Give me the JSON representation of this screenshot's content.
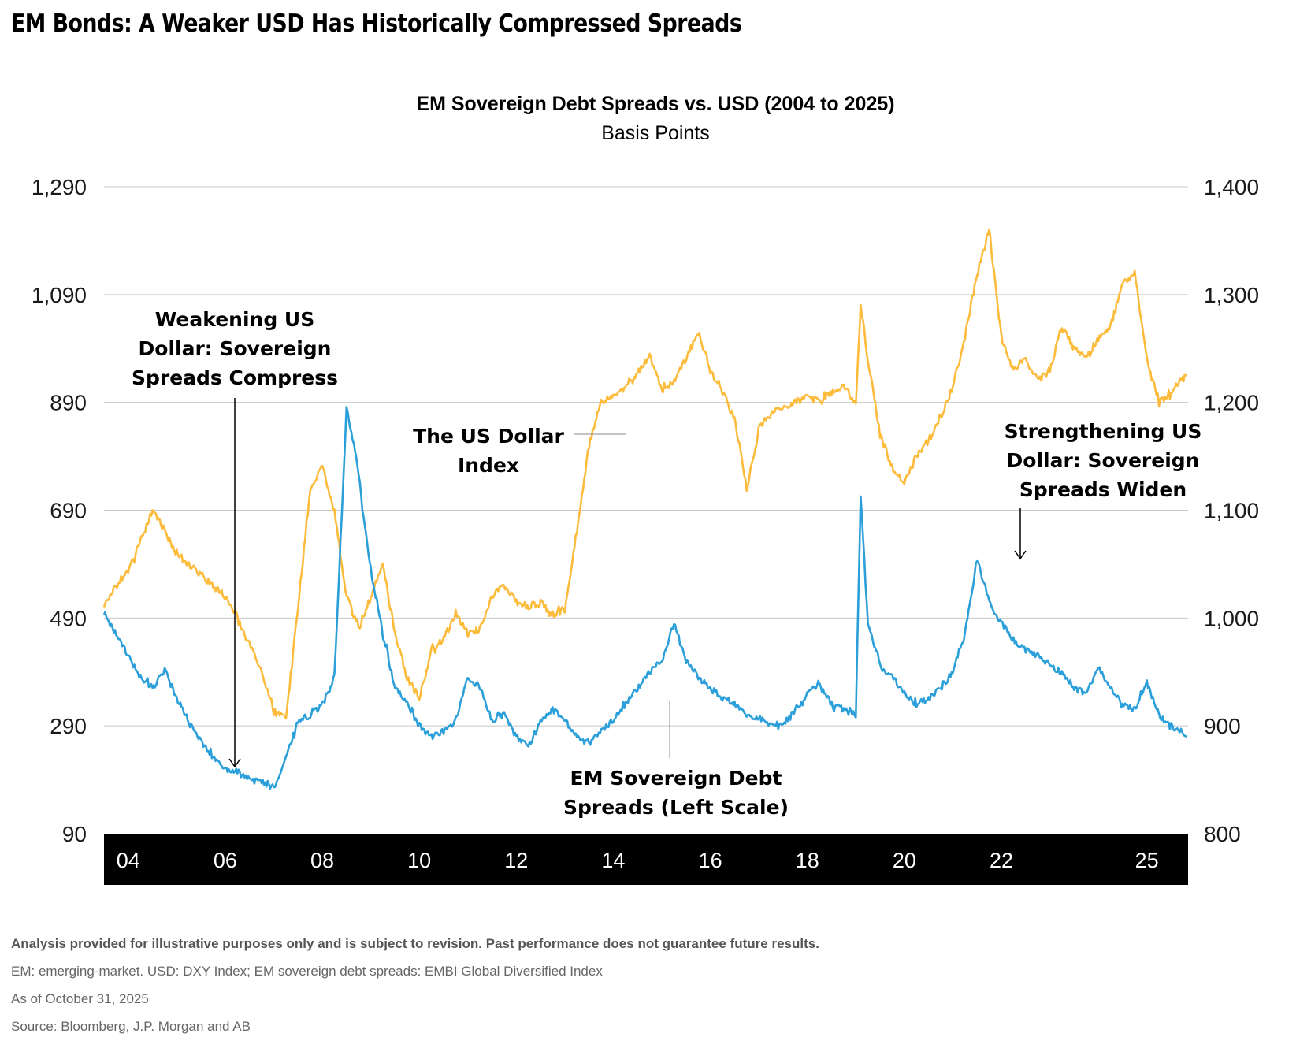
{
  "header": {
    "title": "EM Bonds: A Weaker USD Has Historically Compressed Spreads"
  },
  "chart_data": {
    "type": "line",
    "title": "EM Sovereign Debt Spreads vs. USD (2004 to 2025)",
    "subtitle": "Basis Points",
    "xlabel": "",
    "x_tick_labels": [
      "04",
      "06",
      "08",
      "10",
      "12",
      "14",
      "16",
      "18",
      "20",
      "22",
      "25"
    ],
    "x_tick_years": [
      2004,
      2006,
      2008,
      2010,
      2012,
      2014,
      2016,
      2018,
      2020,
      2022,
      2025
    ],
    "xlim": [
      2003.5,
      2025.85
    ],
    "y_left": {
      "label": "EM Sovereign Debt Spreads (bp)",
      "ylim": [
        90,
        1290
      ],
      "ticks": [
        90,
        290,
        490,
        690,
        890,
        1090,
        1290
      ],
      "tick_labels": [
        "90",
        "290",
        "490",
        "690",
        "890",
        "1,090",
        "1,290"
      ]
    },
    "y_right": {
      "label": "US Dollar Index",
      "ylim": [
        800,
        1400
      ],
      "ticks": [
        800,
        900,
        1000,
        1100,
        1200,
        1300,
        1400
      ],
      "tick_labels": [
        "800",
        "900",
        "1,000",
        "1,100",
        "1,200",
        "1,300",
        "1,400"
      ]
    },
    "grid": true,
    "legend": "none (inline annotations)",
    "series": [
      {
        "name": "The US Dollar Index",
        "axis": "right",
        "color": "#FDBB3B",
        "x": [
          2003.5,
          2003.75,
          2004.0,
          2004.25,
          2004.5,
          2004.75,
          2005.0,
          2005.25,
          2005.5,
          2005.75,
          2006.0,
          2006.25,
          2006.5,
          2006.75,
          2007.0,
          2007.25,
          2007.5,
          2007.75,
          2008.0,
          2008.25,
          2008.5,
          2008.75,
          2009.0,
          2009.25,
          2009.5,
          2009.75,
          2010.0,
          2010.25,
          2010.5,
          2010.75,
          2011.0,
          2011.25,
          2011.5,
          2011.75,
          2012.0,
          2012.25,
          2012.5,
          2012.75,
          2013.0,
          2013.25,
          2013.5,
          2013.75,
          2014.0,
          2014.25,
          2014.5,
          2014.75,
          2015.0,
          2015.25,
          2015.5,
          2015.75,
          2016.0,
          2016.25,
          2016.5,
          2016.75,
          2017.0,
          2017.25,
          2017.5,
          2017.75,
          2018.0,
          2018.25,
          2018.5,
          2018.75,
          2019.0,
          2019.1,
          2019.25,
          2019.5,
          2019.75,
          2020.0,
          2020.25,
          2020.5,
          2020.75,
          2021.0,
          2021.25,
          2021.5,
          2021.75,
          2022.0,
          2022.25,
          2022.5,
          2022.75,
          2023.0,
          2023.25,
          2023.5,
          2023.75,
          2024.0,
          2024.25,
          2024.5,
          2024.75,
          2025.0,
          2025.25,
          2025.5,
          2025.83
        ],
        "y": [
          1010,
          1030,
          1045,
          1070,
          1100,
          1080,
          1060,
          1050,
          1040,
          1030,
          1020,
          1000,
          975,
          950,
          915,
          905,
          1010,
          1120,
          1140,
          1100,
          1020,
          990,
          1020,
          1050,
          985,
          945,
          925,
          970,
          980,
          1005,
          985,
          990,
          1020,
          1030,
          1015,
          1010,
          1015,
          1000,
          1010,
          1080,
          1160,
          1200,
          1205,
          1215,
          1225,
          1245,
          1210,
          1220,
          1240,
          1265,
          1230,
          1210,
          1185,
          1120,
          1175,
          1190,
          1195,
          1200,
          1205,
          1200,
          1210,
          1215,
          1200,
          1290,
          1240,
          1170,
          1140,
          1125,
          1150,
          1165,
          1185,
          1215,
          1260,
          1320,
          1360,
          1260,
          1230,
          1240,
          1220,
          1230,
          1270,
          1250,
          1240,
          1260,
          1270,
          1310,
          1320,
          1240,
          1200,
          1210,
          1225
        ]
      },
      {
        "name": "EM Sovereign Debt Spreads (Left Scale)",
        "axis": "left",
        "color": "#2B9FD9",
        "x": [
          2003.5,
          2003.75,
          2004.0,
          2004.25,
          2004.5,
          2004.75,
          2005.0,
          2005.25,
          2005.5,
          2005.75,
          2006.0,
          2006.25,
          2006.5,
          2006.75,
          2007.0,
          2007.25,
          2007.5,
          2007.75,
          2008.0,
          2008.25,
          2008.5,
          2008.75,
          2008.9,
          2009.0,
          2009.25,
          2009.5,
          2009.75,
          2010.0,
          2010.25,
          2010.5,
          2010.75,
          2011.0,
          2011.25,
          2011.5,
          2011.75,
          2012.0,
          2012.25,
          2012.5,
          2012.75,
          2013.0,
          2013.25,
          2013.5,
          2013.75,
          2014.0,
          2014.25,
          2014.5,
          2014.75,
          2015.0,
          2015.25,
          2015.5,
          2015.75,
          2016.0,
          2016.25,
          2016.5,
          2016.75,
          2017.0,
          2017.25,
          2017.5,
          2017.75,
          2018.0,
          2018.25,
          2018.5,
          2018.75,
          2019.0,
          2019.1,
          2019.25,
          2019.5,
          2019.75,
          2020.0,
          2020.25,
          2020.5,
          2020.75,
          2021.0,
          2021.25,
          2021.5,
          2021.75,
          2022.0,
          2022.25,
          2022.5,
          2022.75,
          2023.0,
          2023.25,
          2023.5,
          2023.75,
          2024.0,
          2024.25,
          2024.5,
          2024.75,
          2025.0,
          2025.25,
          2025.5,
          2025.83
        ],
        "y": [
          500,
          460,
          420,
          380,
          360,
          395,
          340,
          300,
          260,
          230,
          210,
          205,
          190,
          185,
          175,
          230,
          300,
          310,
          330,
          380,
          880,
          760,
          640,
          580,
          460,
          360,
          330,
          290,
          270,
          280,
          300,
          380,
          360,
          300,
          310,
          270,
          250,
          300,
          320,
          300,
          270,
          260,
          280,
          300,
          330,
          360,
          390,
          410,
          480,
          410,
          380,
          360,
          340,
          330,
          310,
          305,
          290,
          290,
          320,
          350,
          370,
          330,
          320,
          310,
          720,
          480,
          400,
          380,
          350,
          330,
          340,
          360,
          390,
          460,
          600,
          520,
          480,
          450,
          430,
          420,
          400,
          390,
          360,
          350,
          400,
          360,
          330,
          320,
          370,
          310,
          290,
          270
        ]
      }
    ],
    "annotations": [
      {
        "text_lines": [
          "Weakening US",
          "Dollar: Sovereign",
          "Spreads Compress"
        ],
        "points_to": {
          "x": 2006.0,
          "series": "EM Sovereign Debt Spreads (Left Scale)"
        }
      },
      {
        "text_lines": [
          "The US Dollar",
          "Index"
        ],
        "points_to": {
          "x": 2013.0,
          "series": "The US Dollar Index"
        }
      },
      {
        "text_lines": [
          "EM Sovereign Debt",
          "Spreads (Left Scale)"
        ],
        "points_to": {
          "x": 2014.5,
          "series": "EM Sovereign Debt Spreads (Left Scale)"
        }
      },
      {
        "text_lines": [
          "Strengthening US",
          "Dollar: Sovereign",
          "Spreads Widen"
        ],
        "points_to": {
          "x": 2021.2,
          "series": "EM Sovereign Debt Spreads (Left Scale)"
        }
      }
    ]
  },
  "footnotes": {
    "disclaimer": "Analysis provided for illustrative purposes only and is subject to revision. Past performance does not guarantee future results.",
    "definitions": "EM: emerging-market. USD: DXY Index; EM sovereign debt spreads: EMBI Global Diversified Index",
    "as_of": "As of October 31, 2025",
    "source": "Source: Bloomberg, J.P. Morgan and AB"
  }
}
